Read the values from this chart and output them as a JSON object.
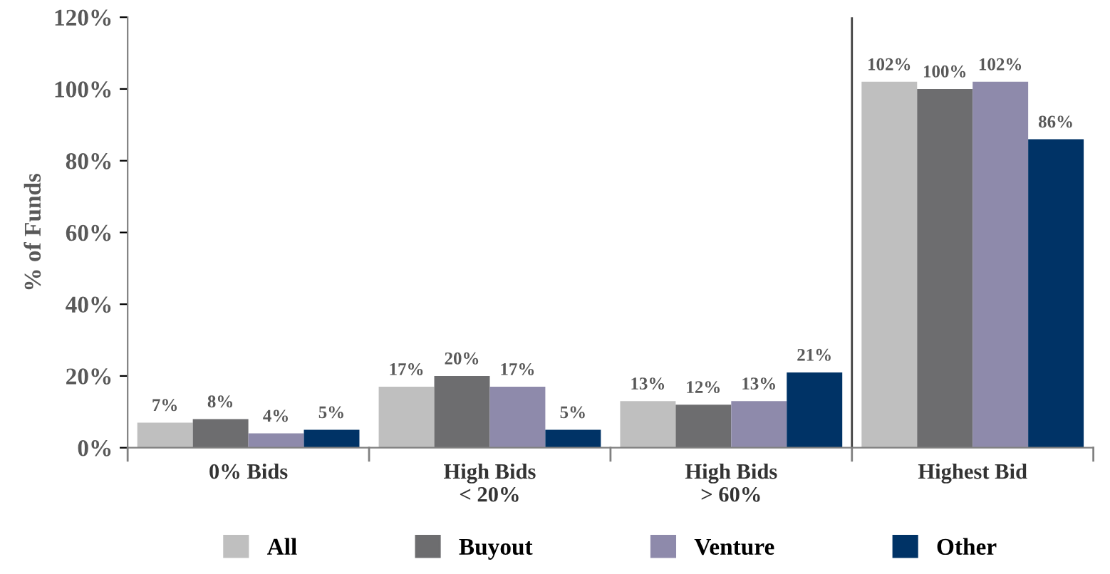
{
  "chart_data": {
    "type": "bar",
    "ylabel": "% of Funds",
    "categories": [
      "0% Bids",
      "High Bids\n< 20%",
      "High Bids\n> 60%",
      "Highest Bid"
    ],
    "series": [
      {
        "name": "All",
        "color": "#bfbfbf",
        "values": [
          7,
          17,
          13,
          102
        ],
        "value_labels": [
          "7%",
          "17%",
          "13%",
          "102%"
        ]
      },
      {
        "name": "Buyout",
        "color": "#6d6d6f",
        "values": [
          8,
          20,
          12,
          100
        ],
        "value_labels": [
          "8%",
          "20%",
          "12%",
          "100%"
        ]
      },
      {
        "name": "Venture",
        "color": "#8e8aab",
        "values": [
          4,
          17,
          13,
          102
        ],
        "value_labels": [
          "4%",
          "17%",
          "13%",
          "102%"
        ]
      },
      {
        "name": "Other",
        "color": "#003366",
        "values": [
          5,
          5,
          21,
          86
        ],
        "value_labels": [
          "5%",
          "5%",
          "21%",
          "86%"
        ]
      }
    ],
    "ylim": [
      0,
      120
    ],
    "yticks": [
      {
        "value": 0,
        "label": "0%"
      },
      {
        "value": 20,
        "label": "20%"
      },
      {
        "value": 40,
        "label": "40%"
      },
      {
        "value": 60,
        "label": "60%"
      },
      {
        "value": 80,
        "label": "80%"
      },
      {
        "value": 100,
        "label": "100%"
      },
      {
        "value": 120,
        "label": "120%"
      }
    ],
    "grid": false,
    "legend": "bottom"
  }
}
